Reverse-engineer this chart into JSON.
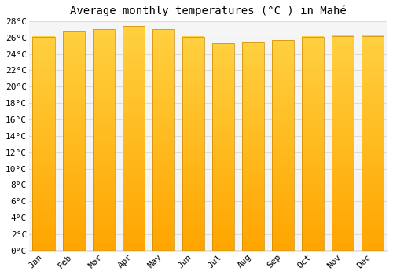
{
  "title": "Average monthly temperatures (°C ) in Mahé",
  "months": [
    "Jan",
    "Feb",
    "Mar",
    "Apr",
    "May",
    "Jun",
    "Jul",
    "Aug",
    "Sep",
    "Oct",
    "Nov",
    "Dec"
  ],
  "values": [
    26.1,
    26.7,
    27.0,
    27.4,
    27.0,
    26.1,
    25.3,
    25.4,
    25.7,
    26.1,
    26.2,
    26.2
  ],
  "bar_color_bottom": "#FFA500",
  "bar_color_top": "#FFD040",
  "bar_edge_color": "#CC8800",
  "background_color": "#FFFFFF",
  "plot_bg_color": "#F5F5F5",
  "grid_color": "#DDDDDD",
  "ylim": [
    0,
    28
  ],
  "ytick_step": 2,
  "title_fontsize": 10,
  "tick_fontsize": 8,
  "bar_width": 0.75,
  "figwidth": 5.0,
  "figheight": 3.5,
  "dpi": 100
}
